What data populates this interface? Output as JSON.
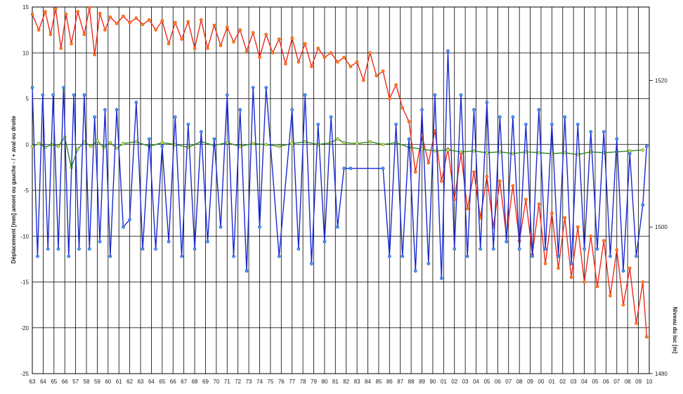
{
  "chart_data": {
    "type": "line",
    "ylabel": "Déplacement [mm] amont ou gauche - / + aval ou droite",
    "y2label": "Niveau du lac [m]",
    "ylim": [
      -25,
      15
    ],
    "yticks": [
      15,
      10,
      5,
      0,
      -5,
      -10,
      -15,
      -20,
      -25
    ],
    "ytick_labels": [
      "15",
      "10",
      "5",
      "0",
      "-5",
      "-10",
      "-15",
      "-20",
      "-25"
    ],
    "y2lim": [
      1480,
      1530
    ],
    "y2ticks": [
      1520,
      1500,
      1480
    ],
    "y2tick_labels": [
      "1520",
      "1500",
      "1480"
    ],
    "xlim": [
      1963,
      2010.5
    ],
    "x_tick_labels": [
      "63",
      "64",
      "65",
      "66",
      "57",
      "58",
      "59",
      "60",
      "61",
      "62",
      "63",
      "64",
      "65",
      "66",
      "67",
      "68",
      "69",
      "70",
      "71",
      "72",
      "73",
      "74",
      "75",
      "76",
      "77",
      "78",
      "79",
      "80",
      "81",
      "82",
      "83",
      "84",
      "85",
      "86",
      "87",
      "88",
      "89",
      "90",
      "01",
      "02",
      "03",
      "04",
      "05",
      "06",
      "07",
      "08",
      "09",
      "00",
      "01",
      "02",
      "03",
      "04",
      "05",
      "06",
      "07",
      "08",
      "09",
      "10"
    ],
    "grid": true,
    "legend": "none",
    "series": [
      {
        "color": "#ee2a1a",
        "marker_color": "#ff8c00",
        "axis": "left",
        "x": [
          1963.0,
          1963.5,
          1964.0,
          1964.4,
          1964.8,
          1965.2,
          1965.6,
          1966.0,
          1966.5,
          1967.0,
          1967.4,
          1967.8,
          1968.2,
          1968.6,
          1969.0,
          1969.5,
          1970.0,
          1970.5,
          1971.0,
          1971.5,
          1972.0,
          1972.5,
          1973.0,
          1973.5,
          1974.0,
          1974.5,
          1975.0,
          1975.5,
          1976.0,
          1976.5,
          1977.0,
          1977.5,
          1978.0,
          1978.5,
          1979.0,
          1979.5,
          1980.0,
          1980.5,
          1981.0,
          1981.5,
          1982.0,
          1982.5,
          1983.0,
          1983.5,
          1984.0,
          1984.5,
          1985.0,
          1985.5,
          1986.0,
          1986.5,
          1987.0,
          1987.5,
          1988.0,
          1988.5,
          1989.0,
          1989.5,
          1990.0,
          1990.5,
          1991.0,
          1991.5,
          1992.0,
          1992.5,
          1993.0,
          1993.5,
          1994.0,
          1994.5,
          1995.0,
          1995.5,
          1996.0,
          1996.5,
          1997.0,
          1997.5,
          1998.0,
          1998.5,
          1999.0,
          1999.5,
          2000.0,
          2000.5,
          2001.0,
          2001.5,
          2002.0,
          2002.5,
          2003.0,
          2003.5,
          2004.0,
          2004.5,
          2005.0,
          2005.5,
          2006.0,
          2006.5,
          2007.0,
          2007.5,
          2008.0,
          2008.5,
          2009.0,
          2009.5,
          2010.0,
          2010.3
        ],
        "y": [
          14.2,
          12.5,
          14.5,
          12.0,
          14.8,
          10.5,
          14.2,
          11.0,
          14.5,
          12.0,
          14.9,
          9.8,
          14.3,
          12.5,
          13.9,
          13.2,
          14.0,
          13.3,
          13.8,
          13.1,
          13.6,
          12.5,
          13.5,
          11.0,
          13.3,
          11.5,
          13.4,
          10.5,
          13.6,
          10.5,
          13.0,
          10.8,
          12.8,
          11.2,
          12.5,
          10.2,
          12.2,
          9.5,
          12.0,
          10.0,
          11.5,
          8.8,
          11.6,
          9.0,
          11.0,
          8.5,
          10.5,
          9.5,
          10.0,
          9.0,
          9.5,
          8.5,
          9.0,
          7.0,
          10.0,
          7.5,
          8.0,
          5.0,
          6.5,
          4.0,
          2.5,
          -3.0,
          1.0,
          -2.0,
          1.5,
          -4.0,
          -0.5,
          -6.0,
          -1.0,
          -7.0,
          -3.0,
          -8.0,
          -3.5,
          -9.0,
          -4.0,
          -10.0,
          -4.5,
          -10.5,
          -6.0,
          -12.0,
          -6.5,
          -13.0,
          -7.5,
          -13.5,
          -8.0,
          -14.5,
          -9.0,
          -15.0,
          -10.0,
          -15.5,
          -10.5,
          -16.5,
          -11.5,
          -17.5,
          -13.5,
          -19.5,
          -15.0,
          -21.0
        ]
      },
      {
        "color": "#2a8a2a",
        "marker_color": "#e8e040",
        "axis": "left",
        "x": [
          1963.0,
          1963.5,
          1964.0,
          1964.5,
          1965.0,
          1965.5,
          1966.0,
          1966.5,
          1967.0,
          1967.5,
          1968.0,
          1968.5,
          1969.0,
          1969.5,
          1970.0,
          1971.0,
          1972.0,
          1973.0,
          1974.0,
          1975.0,
          1976.0,
          1977.0,
          1978.0,
          1979.0,
          1980.0,
          1981.0,
          1982.0,
          1983.0,
          1984.0,
          1985.0,
          1986.0,
          1986.5,
          1987.0,
          1988.0,
          1989.0,
          1990.0,
          1991.0,
          1992.0,
          1993.0,
          1994.0,
          1995.0,
          1996.0,
          1997.0,
          1998.0,
          1999.0,
          2000.0,
          2001.0,
          2002.0,
          2003.0,
          2004.0,
          2005.0,
          2006.0,
          2007.0,
          2008.0,
          2009.0,
          2010.0
        ],
        "y": [
          -0.2,
          0.1,
          -0.3,
          0.0,
          -0.2,
          0.8,
          -2.5,
          -0.5,
          0.3,
          -0.2,
          0.4,
          -0.3,
          0.2,
          -0.4,
          0.1,
          0.3,
          -0.2,
          0.2,
          0.0,
          -0.3,
          0.3,
          -0.1,
          0.2,
          -0.2,
          0.1,
          0.0,
          -0.2,
          0.1,
          0.3,
          0.0,
          0.2,
          0.6,
          0.2,
          0.1,
          0.3,
          0.0,
          0.2,
          -0.3,
          -0.5,
          -0.7,
          -0.6,
          -0.8,
          -0.7,
          -0.9,
          -0.8,
          -1.0,
          -0.8,
          -0.9,
          -1.0,
          -0.9,
          -1.1,
          -0.8,
          -0.9,
          -0.8,
          -0.7,
          -0.6
        ]
      },
      {
        "color": "#1a2ad0",
        "marker_color": "#40a8f0",
        "axis": "right",
        "x": [
          1963.0,
          1963.4,
          1963.8,
          1964.2,
          1964.6,
          1965.0,
          1965.4,
          1965.8,
          1966.2,
          1966.6,
          1967.0,
          1967.4,
          1967.8,
          1968.2,
          1968.6,
          1969.0,
          1969.5,
          1970.0,
          1970.5,
          1971.0,
          1971.5,
          1972.0,
          1972.5,
          1973.0,
          1973.5,
          1974.0,
          1974.5,
          1975.0,
          1975.5,
          1976.0,
          1976.5,
          1977.0,
          1977.5,
          1978.0,
          1978.5,
          1979.0,
          1979.5,
          1980.0,
          1980.5,
          1981.0,
          1982.0,
          1983.0,
          1983.5,
          1984.0,
          1984.5,
          1985.0,
          1985.5,
          1986.0,
          1986.5,
          1987.0,
          1987.5,
          1990.0,
          1990.5,
          1991.0,
          1991.5,
          1992.0,
          1992.5,
          1993.0,
          1993.5,
          1994.0,
          1994.5,
          1995.0,
          1995.5,
          1996.0,
          1996.5,
          1997.0,
          1997.5,
          1998.0,
          1998.5,
          1999.0,
          1999.5,
          2000.0,
          2000.5,
          2001.0,
          2001.5,
          2002.0,
          2002.5,
          2003.0,
          2003.5,
          2004.0,
          2004.5,
          2005.0,
          2005.5,
          2006.0,
          2006.5,
          2007.0,
          2007.5,
          2008.0,
          2008.5,
          2009.0,
          2009.5,
          2010.0,
          2010.3
        ],
        "y": [
          1519,
          1496,
          1518,
          1497,
          1518,
          1497,
          1519,
          1496,
          1518,
          1497,
          1518,
          1497,
          1515,
          1498,
          1516,
          1496,
          1516,
          1500,
          1501,
          1517,
          1497,
          1512,
          1497,
          1511,
          1498,
          1515,
          1496,
          1514,
          1497,
          1513,
          1498,
          1512,
          1500,
          1518,
          1496,
          1516,
          1494,
          1519,
          1500,
          1519,
          1496,
          1516,
          1497,
          1518,
          1495,
          1514,
          1498,
          1515,
          1500,
          1508,
          1508,
          1508,
          1496,
          1514,
          1496,
          1512,
          1494,
          1516,
          1495,
          1518,
          1493,
          1524,
          1497,
          1518,
          1496,
          1516,
          1497,
          1517,
          1497,
          1515,
          1498,
          1515,
          1497,
          1514,
          1496,
          1516,
          1497,
          1514,
          1496,
          1515,
          1495,
          1514,
          1497,
          1513,
          1497,
          1513,
          1496,
          1512,
          1494,
          1510,
          1496,
          1503,
          1511
        ]
      }
    ]
  }
}
